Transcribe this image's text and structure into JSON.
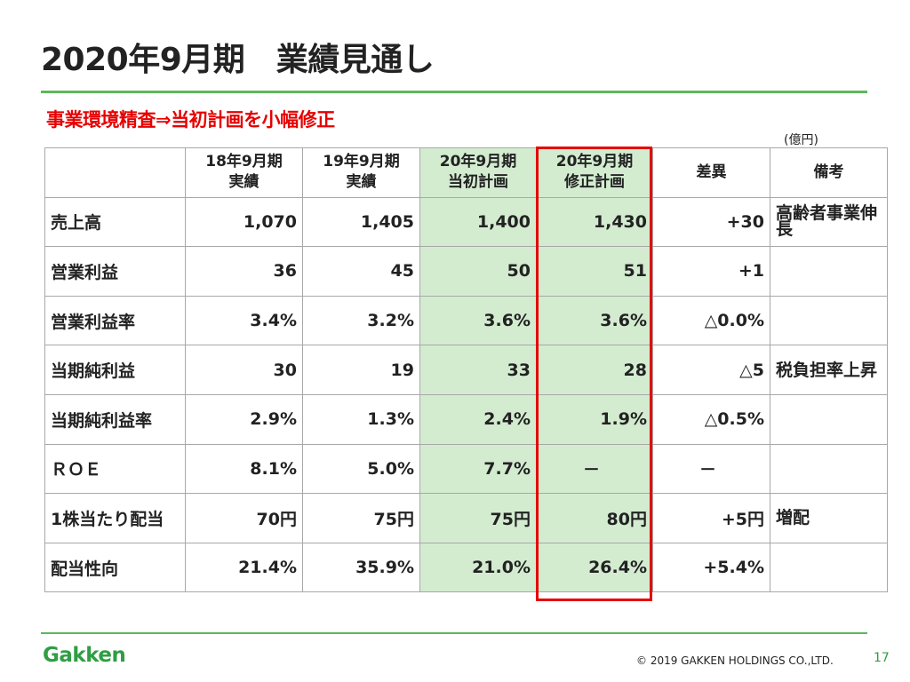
{
  "slide": {
    "title": "2020年9月期　業績見通し",
    "subtitle": "事業環境精査⇒当初計画を小幅修正",
    "unit": "(億円)",
    "logo_text": "Gakken",
    "copyright": "© 2019 GAKKEN HOLDINGS CO.,LTD.",
    "page_number": "17",
    "accent_color": "#5cb85c",
    "highlight_color": "#e60000"
  },
  "table": {
    "headers": [
      {
        "line1": "18年9月期",
        "line2": "実績"
      },
      {
        "line1": "19年9月期",
        "line2": "実績"
      },
      {
        "line1": "20年9月期",
        "line2": "当初計画"
      },
      {
        "line1": "20年9月期",
        "line2": "修正計画"
      },
      {
        "line1": "差異",
        "line2": ""
      },
      {
        "line1": "備考",
        "line2": ""
      }
    ],
    "rows": [
      {
        "label": "売上高",
        "values": [
          "1,070",
          "1,405",
          "1,400",
          "1,430",
          "+30"
        ],
        "note": "高齢者事業伸長"
      },
      {
        "label": "営業利益",
        "values": [
          "36",
          "45",
          "50",
          "51",
          "+1"
        ],
        "note": ""
      },
      {
        "label": "営業利益率",
        "values": [
          "3.4%",
          "3.2%",
          "3.6%",
          "3.6%",
          "△0.0%"
        ],
        "note": ""
      },
      {
        "label": "当期純利益",
        "values": [
          "30",
          "19",
          "33",
          "28",
          "△5"
        ],
        "note": "税負担率上昇"
      },
      {
        "label": "当期純利益率",
        "values": [
          "2.9%",
          "1.3%",
          "2.4%",
          "1.9%",
          "△0.5%"
        ],
        "note": ""
      },
      {
        "label": "ＲＯＥ",
        "values": [
          "8.1%",
          "5.0%",
          "7.7%",
          "－",
          "－"
        ],
        "note": ""
      },
      {
        "label": "1株当たり配当",
        "values": [
          "70円",
          "75円",
          "75円",
          "80円",
          "+5円"
        ],
        "note": "増配"
      },
      {
        "label": "配当性向",
        "values": [
          "21.4%",
          "35.9%",
          "21.0%",
          "26.4%",
          "+5.4%"
        ],
        "note": ""
      }
    ]
  }
}
